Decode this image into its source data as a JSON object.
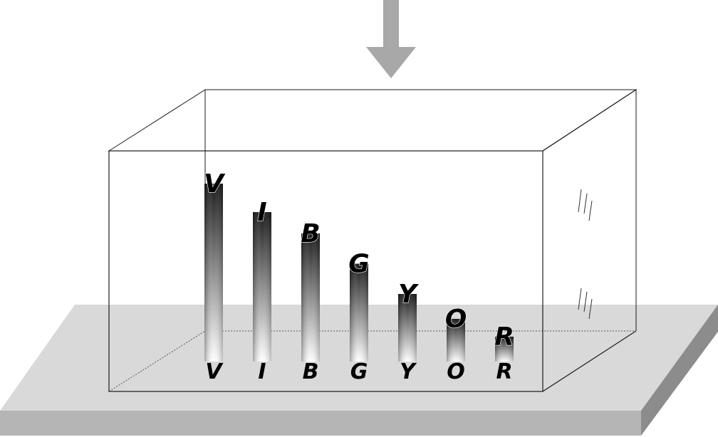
{
  "letters": [
    "V",
    "I",
    "B",
    "G",
    "Y",
    "O",
    "R"
  ],
  "column_relative_heights": [
    1.0,
    0.84,
    0.72,
    0.55,
    0.38,
    0.24,
    0.14
  ],
  "colors": {
    "arrow": "#a8a8a8",
    "platform_top": "#d9d9d9",
    "platform_front": "#b5b5b5",
    "platform_side": "#8c8c8c",
    "box_edge": "#1a1a1a",
    "column_dark": "#1a1a1a",
    "column_light": "#ffffff"
  }
}
